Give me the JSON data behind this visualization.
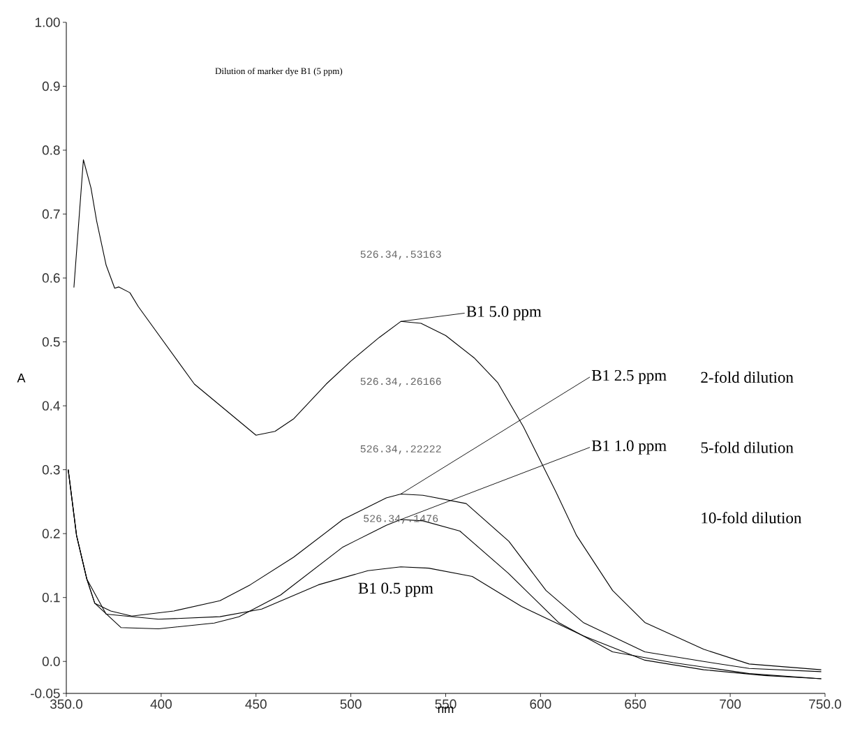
{
  "chart_data": {
    "type": "line",
    "title": "Dilution of marker dye B1 (5 ppm)",
    "xlabel": "nm",
    "ylabel": "A",
    "xlim": [
      350,
      750
    ],
    "ylim": [
      -0.05,
      1.0
    ],
    "xticks": [
      {
        "value": 350,
        "label": "350.0"
      },
      400,
      450,
      500,
      550,
      600,
      650,
      700,
      {
        "value": 750,
        "label": "750.0"
      }
    ],
    "yticks": [
      {
        "value": -0.05,
        "label": "-0.05"
      },
      {
        "value": 0,
        "label": "0.0"
      },
      0.1,
      0.2,
      0.3,
      0.4,
      0.5,
      0.6,
      0.7,
      0.8,
      0.9,
      {
        "value": 1.0,
        "label": "1.00"
      }
    ],
    "grid": false,
    "marker": "none",
    "line_style": "solid",
    "series": [
      {
        "name": "B1 5.0 ppm",
        "color": "#000000",
        "x": [
          354,
          359,
          363,
          366,
          371,
          375.5,
          377.7,
          383.5,
          388,
          417.5,
          450,
          460,
          470,
          487,
          500,
          515,
          526.34,
          537,
          550,
          565,
          577.5,
          591,
          608,
          619,
          638,
          655,
          686,
          710,
          748
        ],
        "values": [
          0.585,
          0.785,
          0.741,
          0.689,
          0.62,
          0.584,
          0.586,
          0.577,
          0.555,
          0.434,
          0.354,
          0.36,
          0.38,
          0.434,
          0.47,
          0.507,
          0.532,
          0.529,
          0.51,
          0.475,
          0.436,
          0.367,
          0.266,
          0.197,
          0.111,
          0.061,
          0.019,
          -0.004,
          -0.013
        ]
      },
      {
        "name": "B1 2.5 ppm",
        "color": "#000000",
        "x": [
          351,
          355.4,
          360.8,
          365,
          373.4,
          384.5,
          406.7,
          431,
          447,
          469.8,
          495.8,
          518.7,
          526.34,
          538,
          560.8,
          583.3,
          602.9,
          622.5,
          655,
          686,
          710,
          748
        ],
        "values": [
          0.3,
          0.197,
          0.129,
          0.091,
          0.079,
          0.071,
          0.079,
          0.095,
          0.12,
          0.163,
          0.222,
          0.256,
          0.262,
          0.26,
          0.247,
          0.188,
          0.111,
          0.061,
          0.015,
          0,
          -0.011,
          -0.016
        ]
      },
      {
        "name": "B1 1.0 ppm",
        "color": "#000000",
        "x": [
          351,
          355.4,
          360.8,
          365,
          378.8,
          398.6,
          428,
          441,
          463,
          495.8,
          518.7,
          526.34,
          538,
          557.5,
          583,
          609.5,
          638,
          670,
          710,
          748
        ],
        "values": [
          0.3,
          0.197,
          0.129,
          0.091,
          0.053,
          0.051,
          0.06,
          0.07,
          0.104,
          0.179,
          0.213,
          0.222,
          0.22,
          0.204,
          0.138,
          0.061,
          0.015,
          -0.002,
          -0.019,
          -0.027
        ]
      },
      {
        "name": "B1 0.5 ppm",
        "color": "#000000",
        "x": [
          351,
          355.4,
          360.8,
          371,
          398.6,
          431,
          453,
          483,
          509,
          526.34,
          541,
          564,
          590,
          622.5,
          655,
          686,
          718,
          748
        ],
        "values": [
          0.3,
          0.197,
          0.129,
          0.074,
          0.066,
          0.07,
          0.082,
          0.12,
          0.142,
          0.148,
          0.146,
          0.133,
          0.086,
          0.04,
          0.002,
          -0.013,
          -0.022,
          -0.027
        ]
      }
    ],
    "annotations": [
      "526.34,.53163",
      "526.34,.26166",
      "526.34,.22222",
      "526.34,.1476",
      "2-fold dilution",
      "5-fold dilution",
      "10-fold dilution"
    ]
  }
}
